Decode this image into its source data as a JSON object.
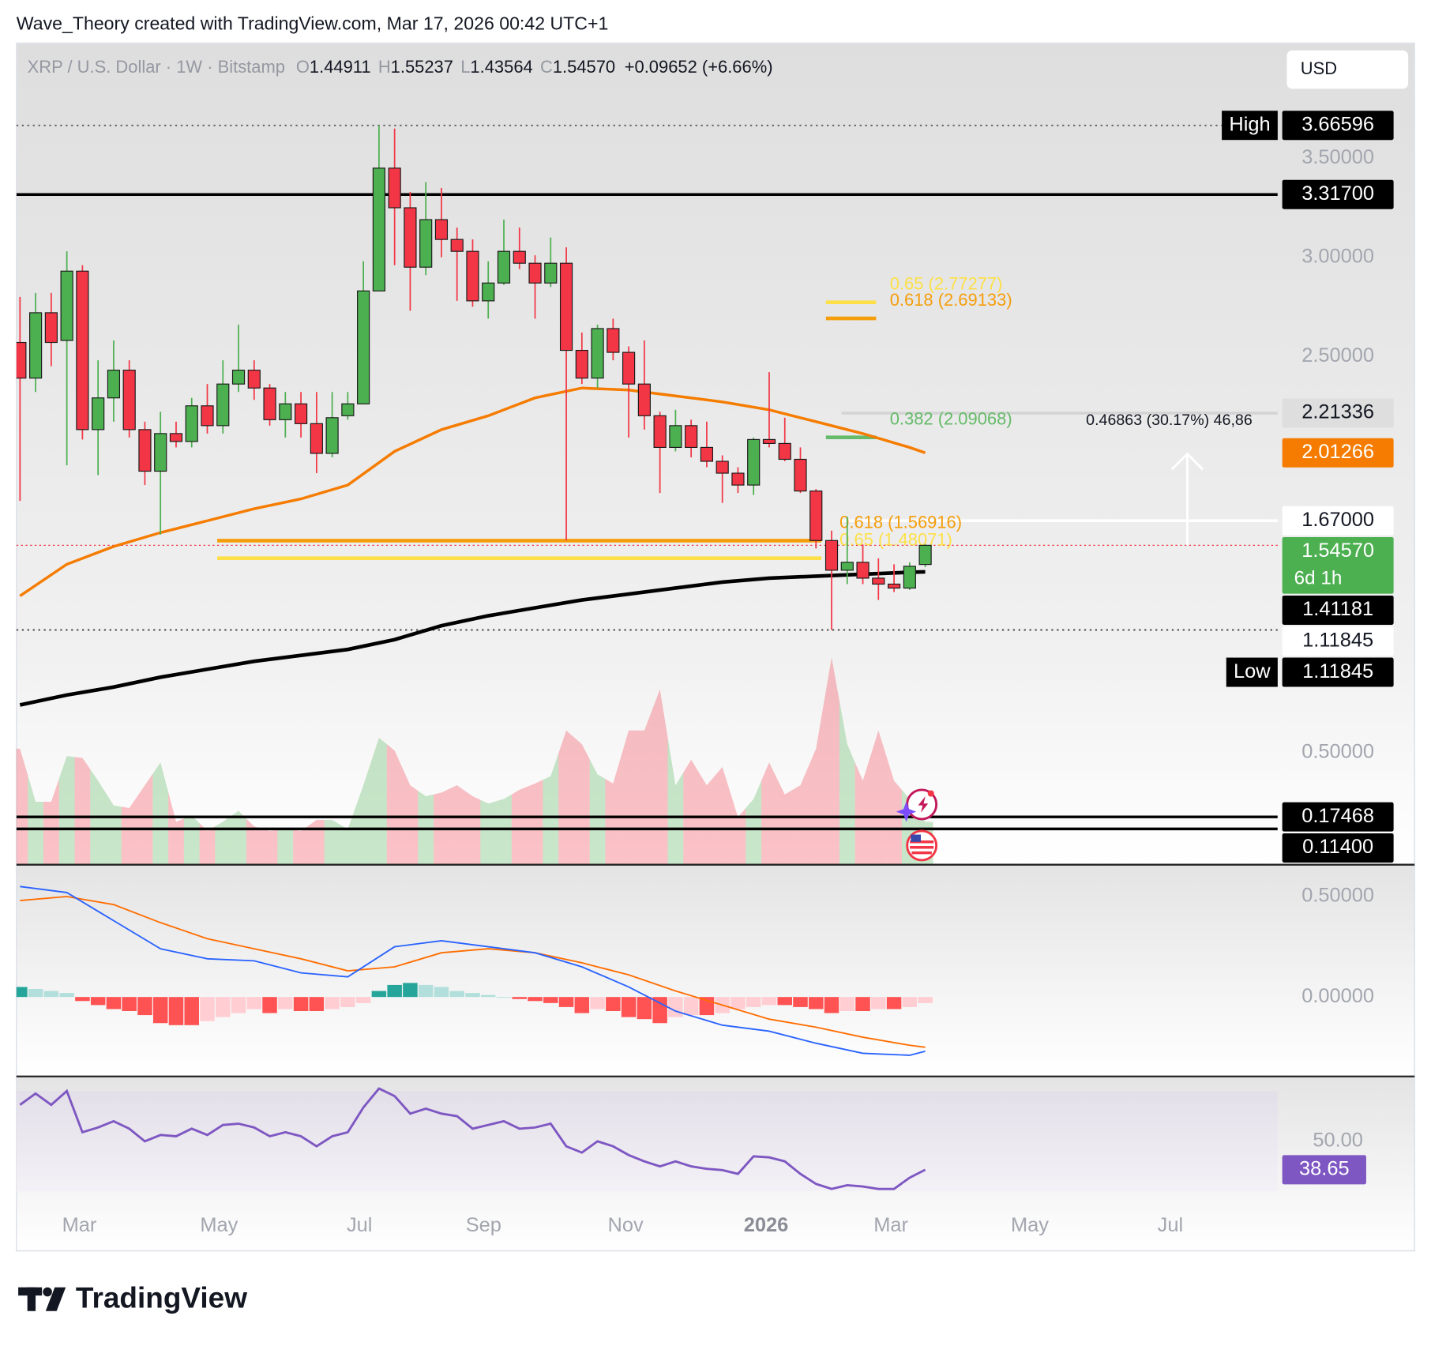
{
  "credit": "Wave_Theory created with TradingView.com, Mar 17, 2026 00:42 UTC+1",
  "brand": "TradingView",
  "chart_data": {
    "type": "candlestick",
    "title": "XRP / U.S. Dollar · 1W · Bitstamp",
    "currency": "USD",
    "ohlc_legend": [
      {
        "key": "O",
        "value": 1.44911,
        "label": "1.44911"
      },
      {
        "key": "H",
        "value": 1.55237,
        "label": "1.55237"
      },
      {
        "key": "L",
        "value": 1.43564,
        "label": "1.43564"
      },
      {
        "key": "C",
        "value": 1.5457,
        "label": "1.54570"
      }
    ],
    "change": "+0.09652 (+6.66%)",
    "categories": [
      null,
      null,
      null,
      null,
      null,
      null,
      null,
      null,
      null,
      null,
      null,
      null,
      null,
      null,
      null,
      null,
      null,
      null,
      null,
      null,
      null,
      null,
      null,
      null,
      null,
      null,
      null,
      null,
      null,
      null,
      null,
      null,
      null,
      null,
      null,
      null,
      null,
      null,
      null,
      null,
      null,
      null,
      null,
      null,
      null,
      null,
      null,
      null,
      null,
      null,
      null,
      null,
      null,
      null,
      null,
      null,
      null,
      null,
      null
    ],
    "open": [
      2.57,
      2.39,
      2.72,
      2.58,
      2.93,
      2.13,
      2.29,
      2.43,
      2.13,
      1.92,
      2.11,
      2.07,
      2.25,
      2.15,
      2.36,
      2.43,
      2.34,
      2.18,
      2.26,
      2.16,
      2.01,
      2.2,
      2.26,
      2.83,
      3.45,
      3.25,
      2.95,
      3.19,
      3.09,
      3.03,
      2.78,
      2.87,
      3.03,
      2.97,
      2.87,
      2.97,
      2.53,
      2.39,
      2.64,
      2.52,
      2.36,
      2.2,
      2.04,
      2.15,
      2.04,
      1.97,
      1.91,
      1.85,
      2.08,
      2.06,
      1.98,
      1.82,
      1.57,
      1.42,
      1.46,
      1.38,
      1.35,
      1.33,
      1.44911
    ],
    "high": [
      2.8,
      2.82,
      2.82,
      3.03,
      2.96,
      2.48,
      2.58,
      2.48,
      2.17,
      2.22,
      2.17,
      2.29,
      2.36,
      2.48,
      2.66,
      2.48,
      2.36,
      2.32,
      2.32,
      2.32,
      2.32,
      2.32,
      2.98,
      3.66596,
      3.65,
      3.33,
      3.38,
      3.35,
      3.15,
      3.09,
      2.98,
      3.19,
      3.15,
      3.01,
      3.1,
      3.05,
      2.62,
      2.66,
      2.69,
      2.55,
      2.58,
      2.22,
      2.23,
      2.18,
      2.17,
      2.0,
      1.94,
      2.09,
      2.42,
      2.19,
      2.04,
      1.83,
      1.62,
      1.69,
      1.55,
      1.48,
      1.45,
      1.46,
      1.55237
    ],
    "low": [
      1.77,
      2.32,
      2.45,
      1.95,
      2.08,
      1.9,
      2.17,
      2.09,
      1.85,
      1.6,
      2.04,
      2.04,
      2.11,
      2.11,
      2.32,
      2.28,
      2.15,
      2.09,
      2.09,
      1.91,
      1.99,
      2.18,
      2.26,
      2.84,
      2.96,
      2.73,
      2.91,
      3.0,
      2.78,
      2.75,
      2.69,
      2.86,
      2.94,
      2.69,
      2.85,
      1.57,
      2.36,
      2.34,
      2.48,
      2.09,
      2.13,
      1.81,
      2.02,
      1.99,
      1.94,
      1.76,
      1.81,
      1.8,
      2.04,
      1.97,
      1.81,
      1.53,
      1.11845,
      1.35,
      1.35,
      1.27,
      1.31,
      1.32,
      1.43564
    ],
    "close": [
      2.39,
      2.72,
      2.57,
      2.93,
      2.13,
      2.29,
      2.43,
      2.13,
      1.92,
      2.11,
      2.07,
      2.25,
      2.15,
      2.36,
      2.43,
      2.34,
      2.18,
      2.26,
      2.16,
      2.01,
      2.19,
      2.26,
      2.83,
      3.45,
      3.25,
      2.95,
      3.19,
      3.09,
      3.03,
      2.78,
      2.87,
      3.03,
      2.97,
      2.87,
      2.97,
      2.53,
      2.39,
      2.64,
      2.52,
      2.36,
      2.2,
      2.04,
      2.15,
      2.04,
      1.97,
      1.91,
      1.85,
      2.08,
      2.06,
      1.98,
      1.82,
      1.57,
      1.42,
      1.46,
      1.38,
      1.35,
      1.33,
      1.44,
      1.5457
    ],
    "up_color": "#4caf50",
    "down_color": "#f23645",
    "xlim": [
      -0.23,
      80.58
    ],
    "xticks": [
      {
        "value": 3.8,
        "label": "Mar"
      },
      {
        "value": 12.75,
        "label": "May"
      },
      {
        "value": 21.75,
        "label": "Jul"
      },
      {
        "value": 29.7,
        "label": "Sep"
      },
      {
        "value": 38.8,
        "label": "Nov"
      },
      {
        "value": 47.8,
        "label": "2026",
        "emphasis": true
      },
      {
        "value": 55.8,
        "label": "Mar"
      },
      {
        "value": 64.7,
        "label": "May"
      },
      {
        "value": 73.7,
        "label": "Jul"
      }
    ],
    "ylim": [
      -0.062,
      4.081
    ],
    "yticks": [
      {
        "value": 3.5,
        "label": "3.50000"
      },
      {
        "value": 3,
        "label": "3.00000"
      },
      {
        "value": 2.5,
        "label": "2.50000"
      },
      {
        "value": 0.5,
        "label": "0.50000"
      }
    ],
    "moving_averages": [
      {
        "color": "#f57c00",
        "x": [
          0,
          3,
          6,
          9,
          12,
          15,
          18,
          21,
          24,
          27,
          30,
          33,
          36,
          39,
          42,
          45,
          48,
          51,
          54,
          57,
          58
        ],
        "values": [
          1.29,
          1.45,
          1.54,
          1.61,
          1.67,
          1.73,
          1.78,
          1.85,
          2.02,
          2.13,
          2.2,
          2.29,
          2.34,
          2.33,
          2.3,
          2.27,
          2.23,
          2.17,
          2.11,
          2.04,
          2.01266
        ],
        "last": {
          "value": 2.01266,
          "label": "2.01266"
        }
      },
      {
        "color": "#000000",
        "x": [
          0,
          3,
          6,
          9,
          12,
          15,
          18,
          21,
          24,
          27,
          30,
          33,
          36,
          39,
          42,
          45,
          48,
          51,
          54,
          57,
          58
        ],
        "values": [
          0.74,
          0.79,
          0.83,
          0.88,
          0.92,
          0.96,
          0.99,
          1.02,
          1.07,
          1.14,
          1.19,
          1.23,
          1.27,
          1.3,
          1.33,
          1.36,
          1.38,
          1.39,
          1.4,
          1.41,
          1.41181
        ],
        "last": {
          "value": 1.41181,
          "label": "1.41181"
        }
      }
    ],
    "levels": [
      {
        "value": 3.66596,
        "label": "3.66596",
        "tag": "High",
        "line": "dotted",
        "extend": "full",
        "color": "#555555",
        "box": "#000000"
      },
      {
        "value": 3.317,
        "label": "3.31700",
        "line": "solid",
        "extend": "full",
        "color": "#000000",
        "box": "#000000"
      },
      {
        "value": 2.21336,
        "label": "2.21336",
        "line": "solid",
        "extend": "right",
        "color": "#d4d4d4",
        "box": "#dedede"
      },
      {
        "value": 1.67,
        "label": "1.67000",
        "line": "solid",
        "extend": "right",
        "color": "#ffffff",
        "box": "#ffffff"
      },
      {
        "value": 1.11845,
        "label": "1.11845",
        "line": "dotted",
        "extend": "full",
        "color": "#333333",
        "box": "#ffffff"
      },
      {
        "value": 1.11845,
        "label": "1.11845",
        "tag": "Low",
        "box": "#000000"
      },
      {
        "value": 0.17468,
        "label": "0.17468",
        "line": "solid",
        "extend": "full",
        "color": "#000000",
        "box": "#000000"
      },
      {
        "value": 0.114,
        "label": "0.11400",
        "line": "solid",
        "extend": "full",
        "color": "#000000",
        "box": "#000000"
      }
    ],
    "last_price": {
      "value": 1.5457,
      "label": "1.54570",
      "countdown": "6d 1h",
      "color": "#4caf50",
      "line_color": "#f23645"
    },
    "fibs": [
      {
        "text": "0.65 (2.77277)",
        "value": 2.77277,
        "color": "#fde047",
        "span": "short"
      },
      {
        "text": "0.618 (2.69133)",
        "value": 2.69133,
        "color": "#f59e0b",
        "span": "short"
      },
      {
        "text": "0.382 (2.09068)",
        "value": 2.09068,
        "color": "#66bb6a",
        "span": "short"
      },
      {
        "text": "0.618 (1.56916)",
        "value": 1.56916,
        "color": "#f59e0b",
        "span": "long"
      },
      {
        "text": "0.65 (1.48071)",
        "value": 1.48071,
        "color": "#fde047",
        "span": "long"
      }
    ],
    "measure": {
      "text": "0.46863 (30.17%) 46,86"
    },
    "volume": {
      "ylim": [
        0,
        230
      ],
      "values": [
        126,
        68,
        68,
        118,
        116,
        91,
        64,
        61,
        86,
        111,
        46,
        53,
        36,
        46,
        58,
        41,
        36,
        38,
        36,
        48,
        48,
        38,
        86,
        138,
        124,
        86,
        74,
        78,
        86,
        74,
        66,
        71,
        81,
        88,
        96,
        146,
        131,
        98,
        88,
        146,
        146,
        191,
        86,
        114,
        86,
        106,
        51,
        71,
        111,
        76,
        86,
        126,
        226,
        131,
        91,
        146,
        91,
        71,
        46
      ]
    },
    "macd": {
      "ylim": [
        -0.391,
        0.645
      ],
      "yticks": [
        {
          "value": 0.5,
          "label": "0.50000"
        },
        {
          "value": 0,
          "label": "0.00000"
        }
      ],
      "x": [
        0,
        3,
        6,
        9,
        12,
        15,
        18,
        21,
        24,
        27,
        30,
        33,
        36,
        39,
        42,
        45,
        48,
        51,
        54,
        57,
        58
      ],
      "macd": {
        "color": "#2962ff",
        "values": [
          0.55,
          0.52,
          0.38,
          0.24,
          0.19,
          0.18,
          0.12,
          0.1,
          0.25,
          0.28,
          0.25,
          0.22,
          0.15,
          0.05,
          -0.07,
          -0.14,
          -0.17,
          -0.23,
          -0.28,
          -0.29,
          -0.27
        ]
      },
      "signal": {
        "color": "#ff6d00",
        "values": [
          0.48,
          0.5,
          0.46,
          0.37,
          0.29,
          0.24,
          0.19,
          0.13,
          0.15,
          0.22,
          0.24,
          0.22,
          0.17,
          0.11,
          0.03,
          -0.04,
          -0.11,
          -0.15,
          -0.2,
          -0.24,
          -0.25
        ]
      },
      "histogram": [
        0.05,
        0.04,
        0.03,
        0.02,
        -0.02,
        -0.04,
        -0.06,
        -0.07,
        -0.09,
        -0.13,
        -0.14,
        -0.14,
        -0.12,
        -0.1,
        -0.08,
        -0.06,
        -0.08,
        -0.06,
        -0.07,
        -0.07,
        -0.06,
        -0.05,
        -0.03,
        0.03,
        0.06,
        0.07,
        0.06,
        0.05,
        0.03,
        0.02,
        0.01,
        0,
        -0.01,
        -0.02,
        -0.03,
        -0.05,
        -0.08,
        -0.06,
        -0.07,
        -0.1,
        -0.11,
        -0.13,
        -0.1,
        -0.09,
        -0.09,
        -0.08,
        -0.06,
        -0.05,
        -0.04,
        -0.04,
        -0.05,
        -0.06,
        -0.08,
        -0.07,
        -0.07,
        -0.06,
        -0.06,
        -0.05,
        -0.03
      ]
    },
    "rsi": {
      "ylim": [
        20.9,
        75.45
      ],
      "yticks": [
        {
          "value": 50,
          "label": "50.00"
        }
      ],
      "band": [
        30,
        70
      ],
      "color": "#7e57c2",
      "values": [
        64.5,
        69,
        64.5,
        70,
        53.6,
        55.5,
        58,
        55,
        50,
        52.5,
        52,
        55,
        52.5,
        56.5,
        57,
        55.5,
        52,
        53.6,
        52,
        48,
        52,
        53.6,
        63.5,
        71,
        68,
        61,
        63,
        61,
        60,
        55,
        56.5,
        58,
        55,
        55.5,
        57,
        48,
        45.5,
        50,
        48,
        44.5,
        42,
        40,
        42,
        40,
        39,
        38.5,
        37,
        44,
        43.6,
        42,
        37,
        33,
        31,
        32.5,
        32,
        31,
        31,
        35.5,
        38.65
      ],
      "last": {
        "value": 38.65,
        "label": "38.65"
      }
    }
  }
}
